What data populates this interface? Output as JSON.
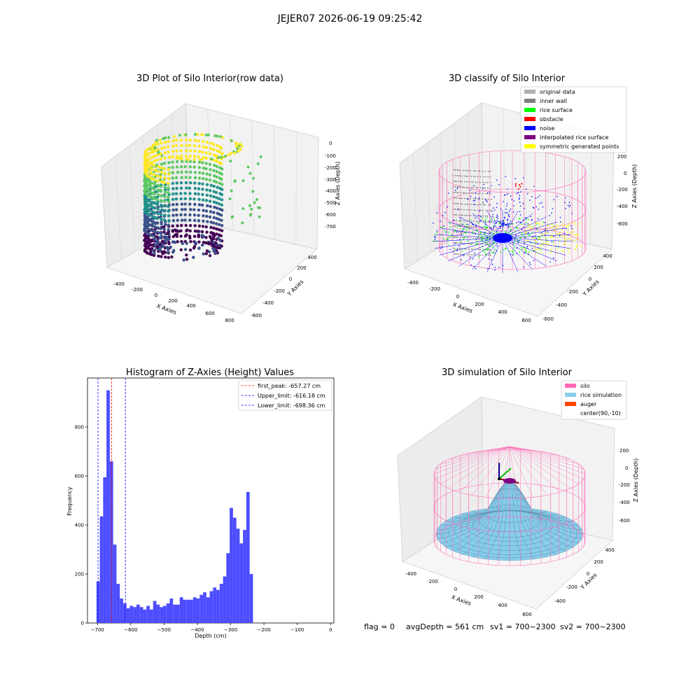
{
  "figure_title": "JEJER07 2026-06-19 09:25:42",
  "colors": {
    "viridis": [
      "#440154",
      "#3b528b",
      "#21918c",
      "#5ec962",
      "#fde725"
    ],
    "wall_gray": "#808080",
    "light_gray": "#b0b0b0",
    "rice_green": "#00ff00",
    "obstacle_red": "#ff0000",
    "noise_blue": "#0000ff",
    "interp_purple": "#800080",
    "sym_yellow": "#ffff00",
    "silo_pink": "#ff69b4",
    "rice_sky": "#87ceeb",
    "auger_orange": "#ff4500",
    "hist_blue": "#4d4dff"
  },
  "panel_raw": {
    "title": "3D Plot of Silo Interior(row data)",
    "xlabel": "X Axies",
    "ylabel": "Y Axies",
    "zlabel": "Z Axies (Depth)",
    "x_ticks": [
      "-400",
      "-200",
      "0",
      "200",
      "400",
      "600",
      "800"
    ],
    "y_ticks": [
      "400",
      "200",
      "0",
      "-200",
      "-400",
      "-600"
    ],
    "z_ticks": [
      "0",
      "-100",
      "-200",
      "-300",
      "-400",
      "-500",
      "-600",
      "-700"
    ]
  },
  "panel_classify": {
    "title": "3D classify of Silo Interior",
    "xlabel": "X Axies",
    "ylabel": "Y Axies",
    "zlabel": "Z Axies (Depth)",
    "x_ticks": [
      "-400",
      "-200",
      "0",
      "200",
      "400",
      "600"
    ],
    "y_ticks": [
      "400",
      "200",
      "0",
      "-200",
      "-400",
      "-600"
    ],
    "z_ticks": [
      "200",
      "0",
      "-200",
      "-400",
      "-600"
    ],
    "legend": [
      {
        "label": "original data",
        "color": "#b0b0b0"
      },
      {
        "label": "inner wall",
        "color": "#808080"
      },
      {
        "label": "rice surface",
        "color": "#00ff00"
      },
      {
        "label": "obstacle",
        "color": "#ff0000"
      },
      {
        "label": "noise",
        "color": "#0000ff"
      },
      {
        "label": "interpolated rice surface",
        "color": "#800080"
      },
      {
        "label": "symmetric generated points",
        "color": "#ffff00"
      }
    ]
  },
  "panel_sim": {
    "title": "3D simulation of Silo Interior",
    "xlabel": "X Axies",
    "ylabel": "Y Axies",
    "zlabel": "Z Axies (Depth)",
    "x_ticks": [
      "-400",
      "-200",
      "0",
      "200",
      "400",
      "600"
    ],
    "y_ticks": [
      "400",
      "200",
      "0",
      "-200",
      "-400"
    ],
    "z_ticks": [
      "200",
      "0",
      "-200",
      "-400",
      "-600"
    ],
    "legend": [
      {
        "label": "silo",
        "color": "#ff69b4"
      },
      {
        "label": "rice simulation",
        "color": "#87ceeb"
      },
      {
        "label": "auger",
        "color": "#ff4500"
      },
      {
        "label": "center(90,-10)",
        "color": ""
      }
    ]
  },
  "status": {
    "flag": "flag = 0",
    "avg_depth": "avgDepth = 561 cm",
    "sv1": "sv1 = 700~2300",
    "sv2": "sv2 = 700~2300"
  },
  "chart_data": [
    {
      "type": "bar",
      "title": "Histogram of Z-Axies (Height) Values",
      "xlabel": "Depth (cm)",
      "ylabel": "Frequency",
      "xlim": [
        -730,
        10
      ],
      "ylim": [
        0,
        1000
      ],
      "x_ticks": [
        -700,
        -600,
        -500,
        -400,
        -300,
        -200,
        -100,
        0
      ],
      "x_tick_labels": [
        "−700",
        "−600",
        "−500",
        "−400",
        "−300",
        "−200",
        "−100",
        "0"
      ],
      "y_ticks": [
        0,
        200,
        400,
        600,
        800
      ],
      "bin_start": -703,
      "bin_width": 10,
      "values": [
        170,
        435,
        595,
        950,
        660,
        320,
        160,
        100,
        80,
        60,
        70,
        65,
        75,
        65,
        55,
        70,
        55,
        90,
        75,
        65,
        70,
        80,
        100,
        75,
        75,
        105,
        95,
        95,
        95,
        105,
        100,
        115,
        125,
        105,
        130,
        145,
        135,
        160,
        190,
        285,
        470,
        430,
        385,
        325,
        380,
        535,
        200
      ],
      "grid": false,
      "legend_position": "top-right",
      "vlines": [
        {
          "label": "first_peak: -657.27 cm",
          "x": -657.27,
          "color": "#ff0000"
        },
        {
          "label": "Upper_limit: -616.18 cm",
          "x": -616.18,
          "color": "#0000ff"
        },
        {
          "label": "Lower_limit: -698.36 cm",
          "x": -698.36,
          "color": "#0000ff"
        }
      ]
    }
  ]
}
